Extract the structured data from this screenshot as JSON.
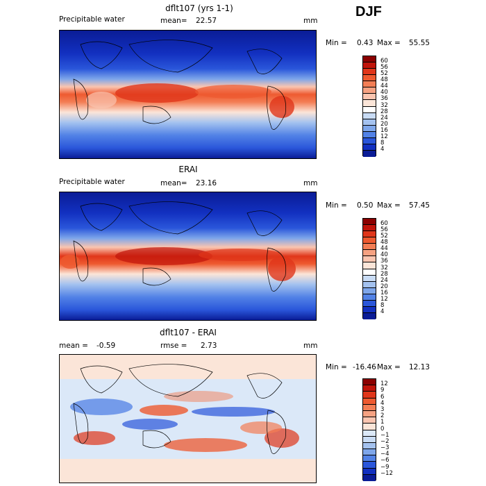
{
  "season": "DJF",
  "panels": [
    {
      "id": "model",
      "title": "dflt107 (yrs 1-1)",
      "left_label": "Precipitable water",
      "stat_label": "mean=",
      "stat_value": "22.57",
      "units": "mm",
      "min_label": "Min =",
      "min_value": "0.43",
      "max_label": "Max =",
      "max_value": "55.55",
      "colorbar": {
        "labels": [
          "60",
          "56",
          "52",
          "48",
          "44",
          "40",
          "36",
          "32",
          "28",
          "24",
          "20",
          "16",
          "12",
          "8",
          "4"
        ],
        "colors": [
          "#8b0000",
          "#c0140a",
          "#e0361a",
          "#ee5a30",
          "#f37e55",
          "#f6a282",
          "#fac5b0",
          "#fbe5d8",
          "#ffffff",
          "#c9dcf5",
          "#a4c2ef",
          "#7ea6ea",
          "#5282e6",
          "#2a56da",
          "#1230c0",
          "#0a1c96"
        ]
      }
    },
    {
      "id": "obs",
      "title": "ERAI",
      "left_label": "Precipitable water",
      "stat_label": "mean=",
      "stat_value": "23.16",
      "units": "mm",
      "min_label": "Min =",
      "min_value": "0.50",
      "max_label": "Max =",
      "max_value": "57.45",
      "colorbar": {
        "labels": [
          "60",
          "56",
          "52",
          "48",
          "44",
          "40",
          "36",
          "32",
          "28",
          "24",
          "20",
          "16",
          "12",
          "8",
          "4"
        ],
        "colors": [
          "#8b0000",
          "#c0140a",
          "#e0361a",
          "#ee5a30",
          "#f37e55",
          "#f6a282",
          "#fac5b0",
          "#fbe5d8",
          "#ffffff",
          "#c9dcf5",
          "#a4c2ef",
          "#7ea6ea",
          "#5282e6",
          "#2a56da",
          "#1230c0",
          "#0a1c96"
        ]
      }
    },
    {
      "id": "diff",
      "title": "dflt107 - ERAI",
      "left_label": "mean =",
      "left_value": "-0.59",
      "stat_label": "rmse =",
      "stat_value": "2.73",
      "units": "mm",
      "min_label": "Min =",
      "min_value": "-16.46",
      "max_label": "Max =",
      "max_value": "12.13",
      "colorbar": {
        "labels": [
          "12",
          "9",
          "6",
          "4",
          "3",
          "2",
          "1",
          "0",
          "−1",
          "−2",
          "−3",
          "−4",
          "−6",
          "−9",
          "−12"
        ],
        "colors": [
          "#8b0000",
          "#c0140a",
          "#e0361a",
          "#ee5a30",
          "#f37e55",
          "#f6a282",
          "#fac5b0",
          "#fbe5d8",
          "#dbe8f8",
          "#c9dcf5",
          "#a4c2ef",
          "#7ea6ea",
          "#5282e6",
          "#2a56da",
          "#1230c0",
          "#0a1c96"
        ]
      }
    }
  ]
}
